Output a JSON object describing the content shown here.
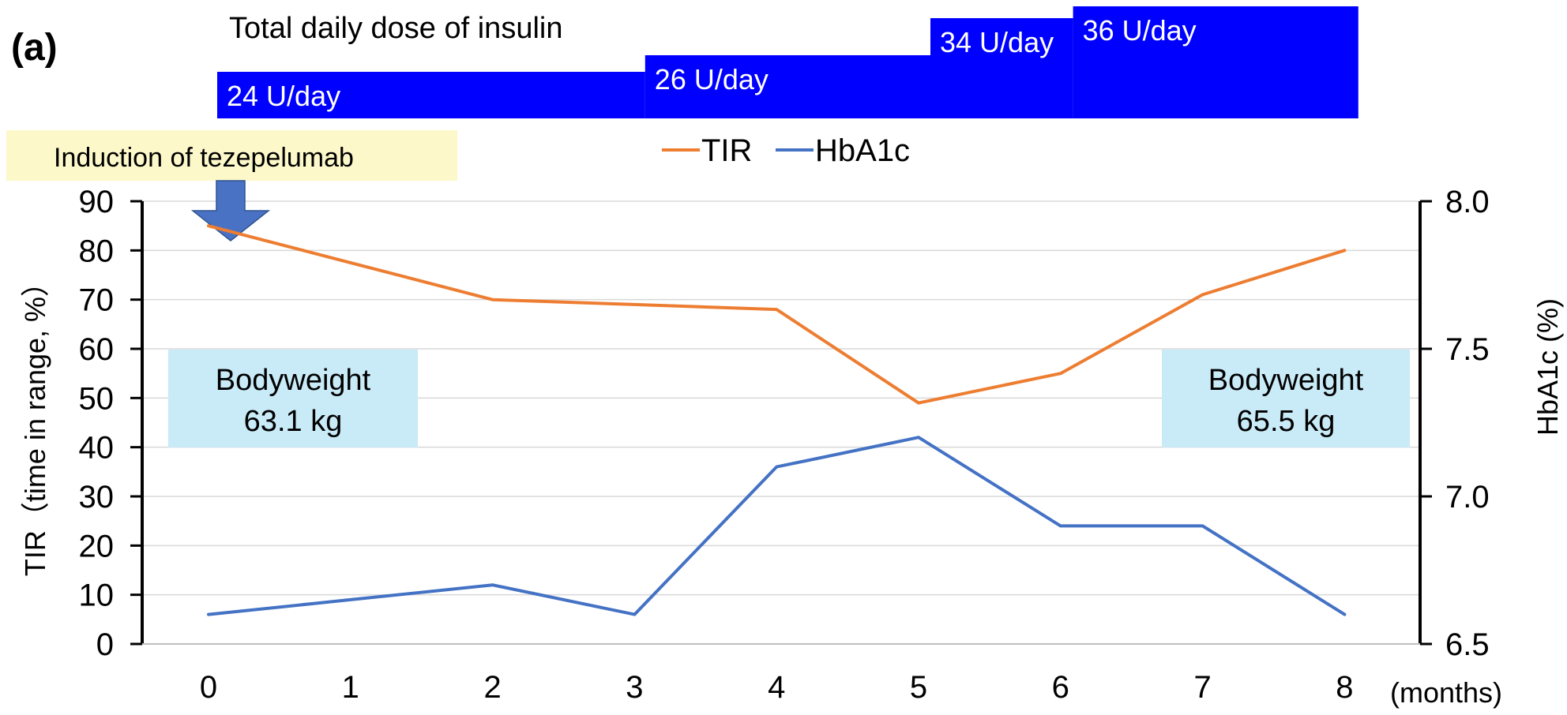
{
  "panel_label": "(a)",
  "insulin": {
    "title": "Total daily dose of insulin",
    "segments": [
      {
        "label": "24 U/day",
        "start_month": 0,
        "end_month": 3
      },
      {
        "label": "26 U/day",
        "start_month": 3,
        "end_month": 5
      },
      {
        "label": "34 U/day",
        "start_month": 5,
        "end_month": 6
      },
      {
        "label": "36 U/day",
        "start_month": 6,
        "end_month": 8
      }
    ],
    "color": "#0000ff"
  },
  "annotation": {
    "label": "Induction of tezepelumab",
    "month": 0,
    "box_color": "#fcf8c9",
    "arrow_color": "#4a72c4"
  },
  "bodyweight": [
    {
      "label": "Bodyweight",
      "value": "63.1 kg",
      "month": 0
    },
    {
      "label": "Bodyweight",
      "value": "65.5 kg",
      "month": 8
    }
  ],
  "bodyweight_box_color": "#c9eaf7",
  "chart_data": {
    "type": "line",
    "x": [
      0,
      1,
      2,
      3,
      4,
      5,
      6,
      7,
      8
    ],
    "x_tick_labels": [
      "0",
      "1",
      "2",
      "3",
      "4",
      "5",
      "6",
      "7",
      "8"
    ],
    "xlabel": "(months)",
    "ylabel": "TIR（time in range, %）",
    "ylim": [
      0,
      90
    ],
    "y_ticks": [
      "0",
      "10",
      "20",
      "30",
      "40",
      "50",
      "60",
      "70",
      "80",
      "90"
    ],
    "y2label": "HbA1c (%)",
    "y2lim": [
      6.5,
      8.0
    ],
    "y2_ticks": [
      "6.5",
      "7.0",
      "7.5",
      "8.0"
    ],
    "grid": true,
    "legend_position": "top-center",
    "series": [
      {
        "name": "TIR",
        "axis": "left",
        "color": "#ed7d31",
        "values": [
          85,
          77.5,
          70,
          69,
          68,
          49,
          55,
          71,
          80
        ]
      },
      {
        "name": "HbA1c",
        "axis": "right",
        "color": "#4472c4",
        "values": [
          6.6,
          6.65,
          6.7,
          6.6,
          7.1,
          7.2,
          6.9,
          6.9,
          6.6
        ]
      }
    ]
  }
}
